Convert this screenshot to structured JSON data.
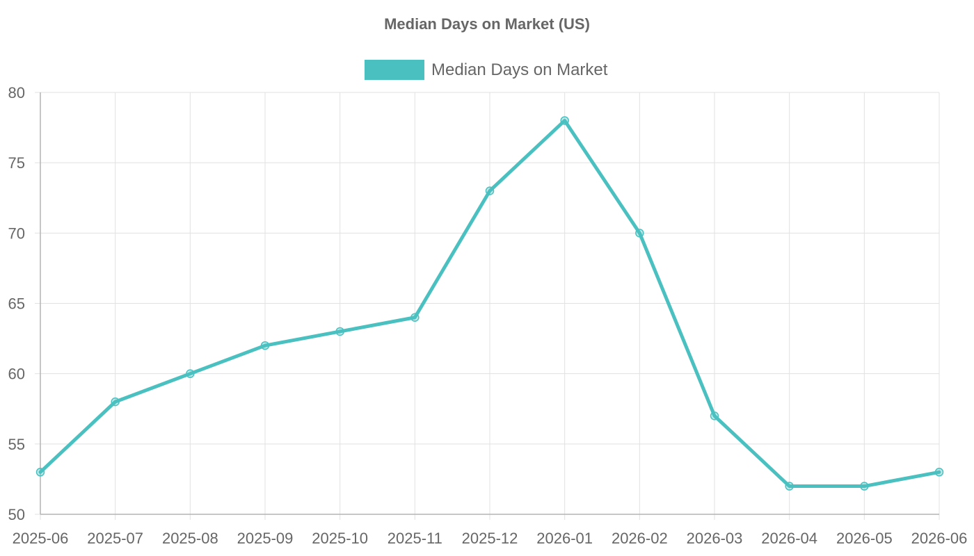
{
  "chart_data": {
    "type": "line",
    "title": "Median Days on Market (US)",
    "xlabel": "",
    "ylabel": "",
    "categories": [
      "2025-06",
      "2025-07",
      "2025-08",
      "2025-09",
      "2025-10",
      "2025-11",
      "2025-12",
      "2026-01",
      "2026-02",
      "2026-03",
      "2026-04",
      "2026-05",
      "2026-06"
    ],
    "series": [
      {
        "name": "Median Days on Market",
        "color": "#4bc0c0",
        "values": [
          53,
          58,
          60,
          62,
          63,
          64,
          73,
          78,
          70,
          57,
          52,
          52,
          53
        ]
      }
    ],
    "ylim": [
      50,
      80
    ],
    "yticks": [
      50,
      55,
      60,
      65,
      70,
      75,
      80
    ],
    "grid": true,
    "legend_position": "top-center"
  }
}
